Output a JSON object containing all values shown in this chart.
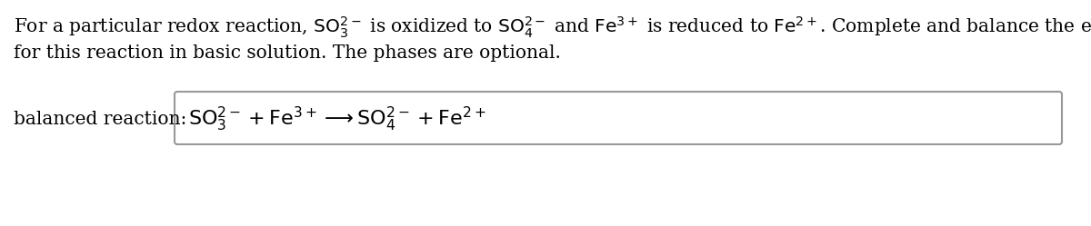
{
  "background_color": "#ffffff",
  "description_line1": "For a particular redox reaction, $\\mathrm{SO_3^{2-}}$ is oxidized to $\\mathrm{SO_4^{2-}}$ and $\\mathrm{Fe^{3+}}$ is reduced to $\\mathrm{Fe^{2+}}$. Complete and balance the equation",
  "description_line2": "for this reaction in basic solution. The phases are optional.",
  "label_text": "balanced reaction:",
  "equation": "$\\mathrm{SO_3^{2-} + Fe^{3+} \\longrightarrow SO_4^{2-} + Fe^{2+}}$",
  "text_color": "#000000",
  "box_edge_color": "#999999",
  "font_size_desc": 14.5,
  "font_size_label": 14.5,
  "font_size_eq": 16,
  "fig_width": 12.0,
  "fig_height": 2.49,
  "dpi": 100
}
